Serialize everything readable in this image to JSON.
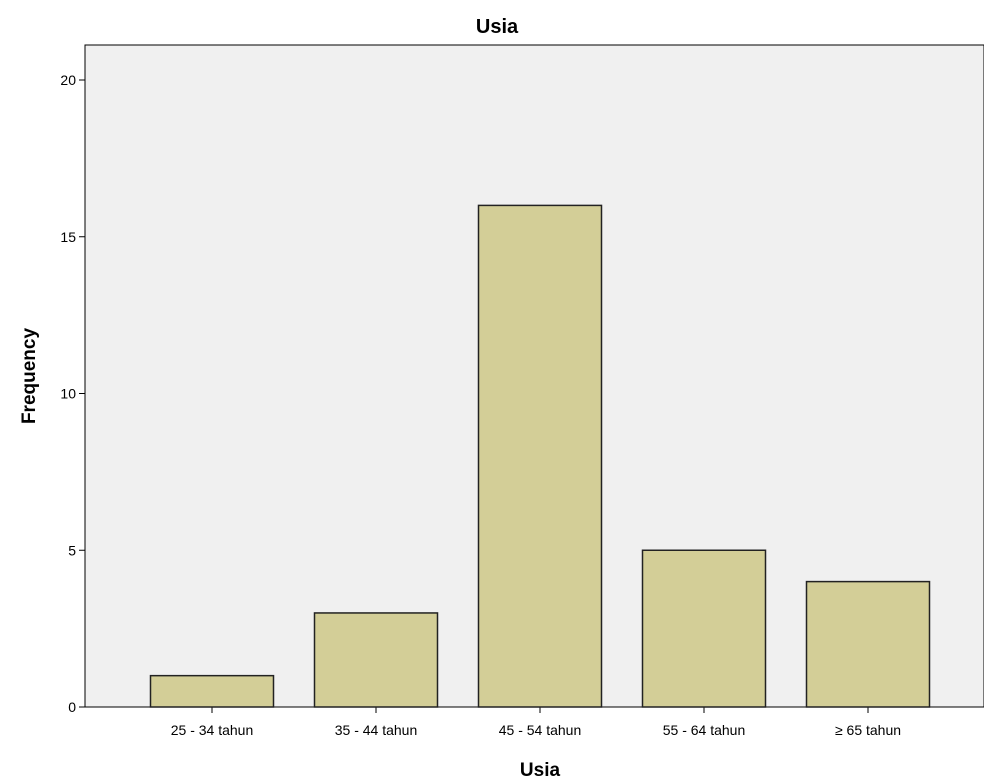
{
  "chart_data": {
    "type": "bar",
    "title": "Usia",
    "xlabel": "Usia",
    "ylabel": "Frequency",
    "categories": [
      "25 - 34 tahun",
      "35 - 44 tahun",
      "45 - 54 tahun",
      "55 - 64 tahun",
      "≥ 65 tahun"
    ],
    "values": [
      1,
      3,
      16,
      5,
      4
    ],
    "yticks": [
      0,
      5,
      10,
      15,
      20
    ],
    "ylim": [
      0,
      21.1
    ],
    "grid": false,
    "legend": "none",
    "colors": {
      "bar_fill": "#d3ce97",
      "bar_stroke": "#222222",
      "plot_background": "#f0f0f0",
      "axis": "#000000"
    }
  }
}
